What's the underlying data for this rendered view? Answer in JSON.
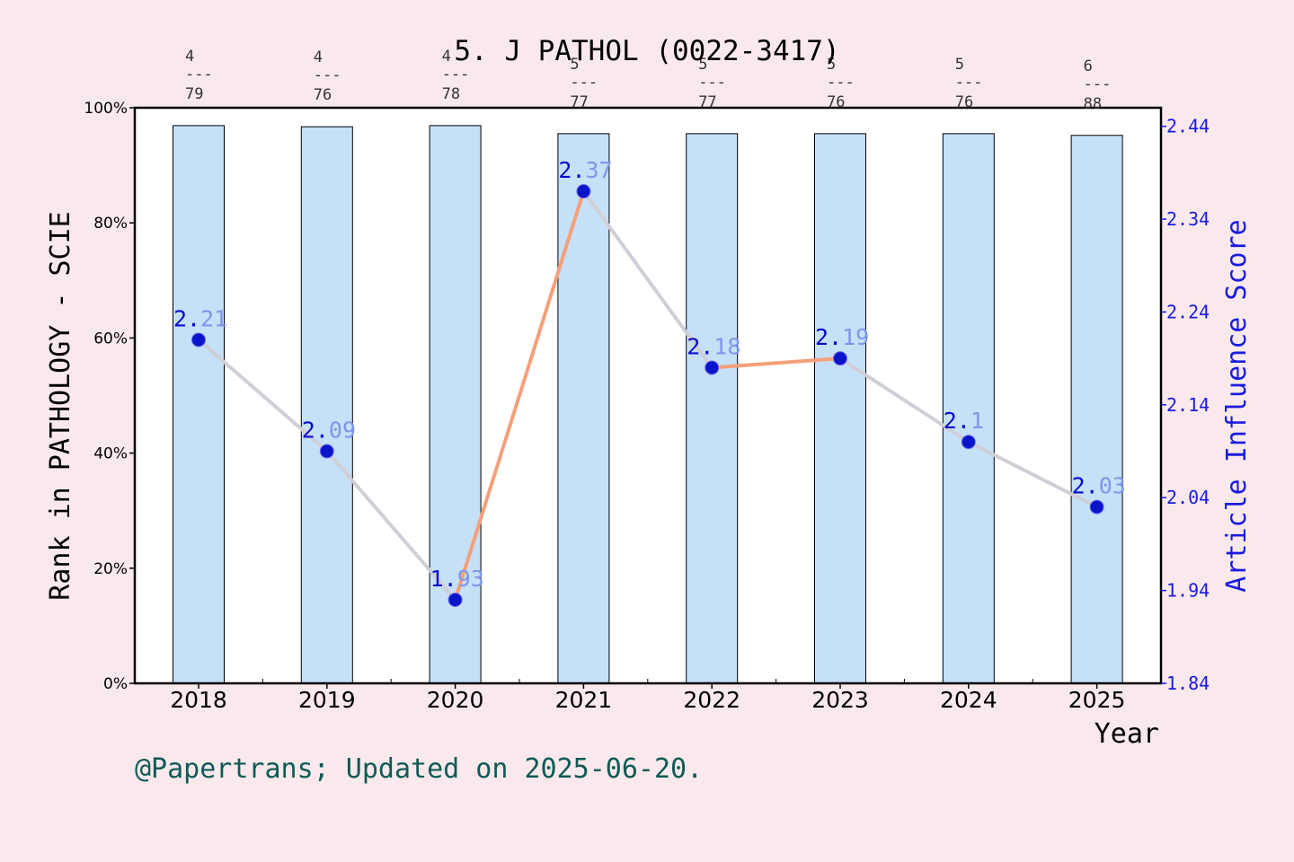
{
  "chart_data": {
    "type": "bar",
    "title": "5. J PATHOL (0022-3417)",
    "xlabel": "Year",
    "ylabel_left": "Rank in PATHOLOGY - SCIE",
    "ylabel_right": "Article Influence Score",
    "categories": [
      "2018",
      "2019",
      "2020",
      "2021",
      "2022",
      "2023",
      "2024",
      "2025"
    ],
    "y_left": {
      "ylim": [
        0,
        100
      ],
      "ticks": [
        0,
        20,
        40,
        60,
        80,
        100
      ],
      "tick_labels": [
        "0%",
        "20%",
        "40%",
        "60%",
        "80%",
        "100%"
      ]
    },
    "y_right": {
      "ylim": [
        1.84,
        2.46
      ],
      "ticks": [
        1.84,
        1.94,
        2.04,
        2.14,
        2.24,
        2.34,
        2.44
      ],
      "tick_labels": [
        "1.84",
        "1.94",
        "2.04",
        "2.14",
        "2.24",
        "2.34",
        "2.44"
      ]
    },
    "series": [
      {
        "kind": "bar",
        "axis": "left",
        "values": [
          96.9,
          96.7,
          96.9,
          95.5,
          95.5,
          95.5,
          95.5,
          95.2
        ],
        "color": "#c5e0f7"
      },
      {
        "kind": "line",
        "axis": "right",
        "values": [
          2.21,
          2.09,
          1.93,
          2.37,
          2.18,
          2.19,
          2.1,
          2.03
        ],
        "value_labels": [
          "2.21",
          "2.09",
          "1.93",
          "2.37",
          "2.18",
          "2.19",
          "2.1",
          "2.03"
        ],
        "line_up_color": "#f4a07a",
        "line_down_color": "#cfcfd8",
        "marker_color": "#0a14c8"
      }
    ],
    "rank_annotations": [
      {
        "rank": "4",
        "sep": "---",
        "total": "79"
      },
      {
        "rank": "4",
        "sep": "---",
        "total": "76"
      },
      {
        "rank": "4",
        "sep": "---",
        "total": "78"
      },
      {
        "rank": "5",
        "sep": "---",
        "total": "77"
      },
      {
        "rank": "5",
        "sep": "---",
        "total": "77"
      },
      {
        "rank": "5",
        "sep": "---",
        "total": "76"
      },
      {
        "rank": "5",
        "sep": "---",
        "total": "76"
      },
      {
        "rank": "6",
        "sep": "---",
        "total": "88"
      }
    ],
    "grid": false,
    "footnote": "@Papertrans; Updated on 2025-06-20."
  },
  "colors": {
    "background": "#f9e9ec",
    "plot_bg": "#ffffff",
    "right_axis": "#1a1ae0",
    "footnote": "#0f5a55",
    "label_dark": "#0a0ad0",
    "label_light": "#7f96ea"
  }
}
